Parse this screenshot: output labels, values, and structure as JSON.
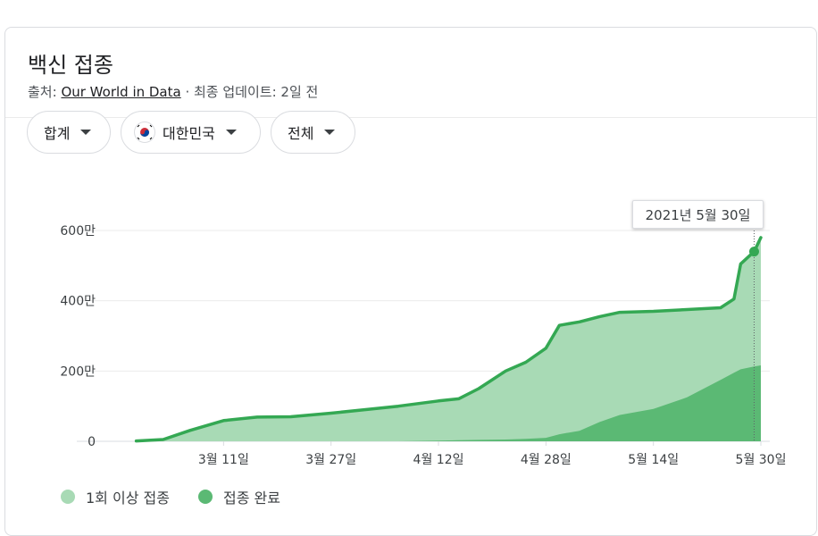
{
  "header": {
    "title": "백신 접종",
    "source_prefix": "출처: ",
    "source_name": "Our World in Data",
    "updated": " · 최종 업데이트: 2일 전"
  },
  "filters": {
    "metric": "합계",
    "country": "대한민국",
    "period": "전체"
  },
  "tooltip": {
    "date": "2021년 5월 30일"
  },
  "legend": {
    "first_dose": "1회 이상 접종",
    "complete": "접종 완료"
  },
  "colors": {
    "first_dose_fill": "#a8dab5",
    "first_dose_line": "#34a853",
    "complete_fill": "#5bb974",
    "marker": "#34a853",
    "grid": "#ebebeb"
  },
  "chart_data": {
    "type": "area",
    "x": [
      "2021-02-26",
      "2021-03-02",
      "2021-03-06",
      "2021-03-11",
      "2021-03-16",
      "2021-03-21",
      "2021-03-27",
      "2021-04-01",
      "2021-04-06",
      "2021-04-12",
      "2021-04-15",
      "2021-04-18",
      "2021-04-22",
      "2021-04-25",
      "2021-04-28",
      "2021-04-30",
      "2021-05-03",
      "2021-05-06",
      "2021-05-09",
      "2021-05-14",
      "2021-05-19",
      "2021-05-24",
      "2021-05-26",
      "2021-05-27",
      "2021-05-29",
      "2021-05-30"
    ],
    "series": [
      {
        "name": "1회 이상 접종",
        "values": [
          1,
          5,
          31,
          59,
          69,
          70,
          80,
          90,
          100,
          115,
          121,
          150,
          200,
          225,
          265,
          330,
          340,
          355,
          367,
          370,
          375,
          380,
          405,
          505,
          540,
          580
        ]
      },
      {
        "name": "접종 완료",
        "values": [
          0,
          0,
          0,
          0,
          0,
          0,
          0,
          0,
          0,
          2,
          3,
          4,
          5,
          7,
          10,
          20,
          30,
          55,
          75,
          92,
          125,
          175,
          195,
          205,
          213,
          216
        ]
      }
    ],
    "x_ticks": [
      "3월 11일",
      "3월 27일",
      "4월 12일",
      "4월 28일",
      "5월 14일",
      "5월 30일"
    ],
    "y_ticks": [
      "0",
      "200만",
      "400만",
      "600만"
    ],
    "yunit": "만",
    "ylim": [
      0,
      600
    ],
    "grid": true,
    "legend_position": "bottom-left"
  }
}
